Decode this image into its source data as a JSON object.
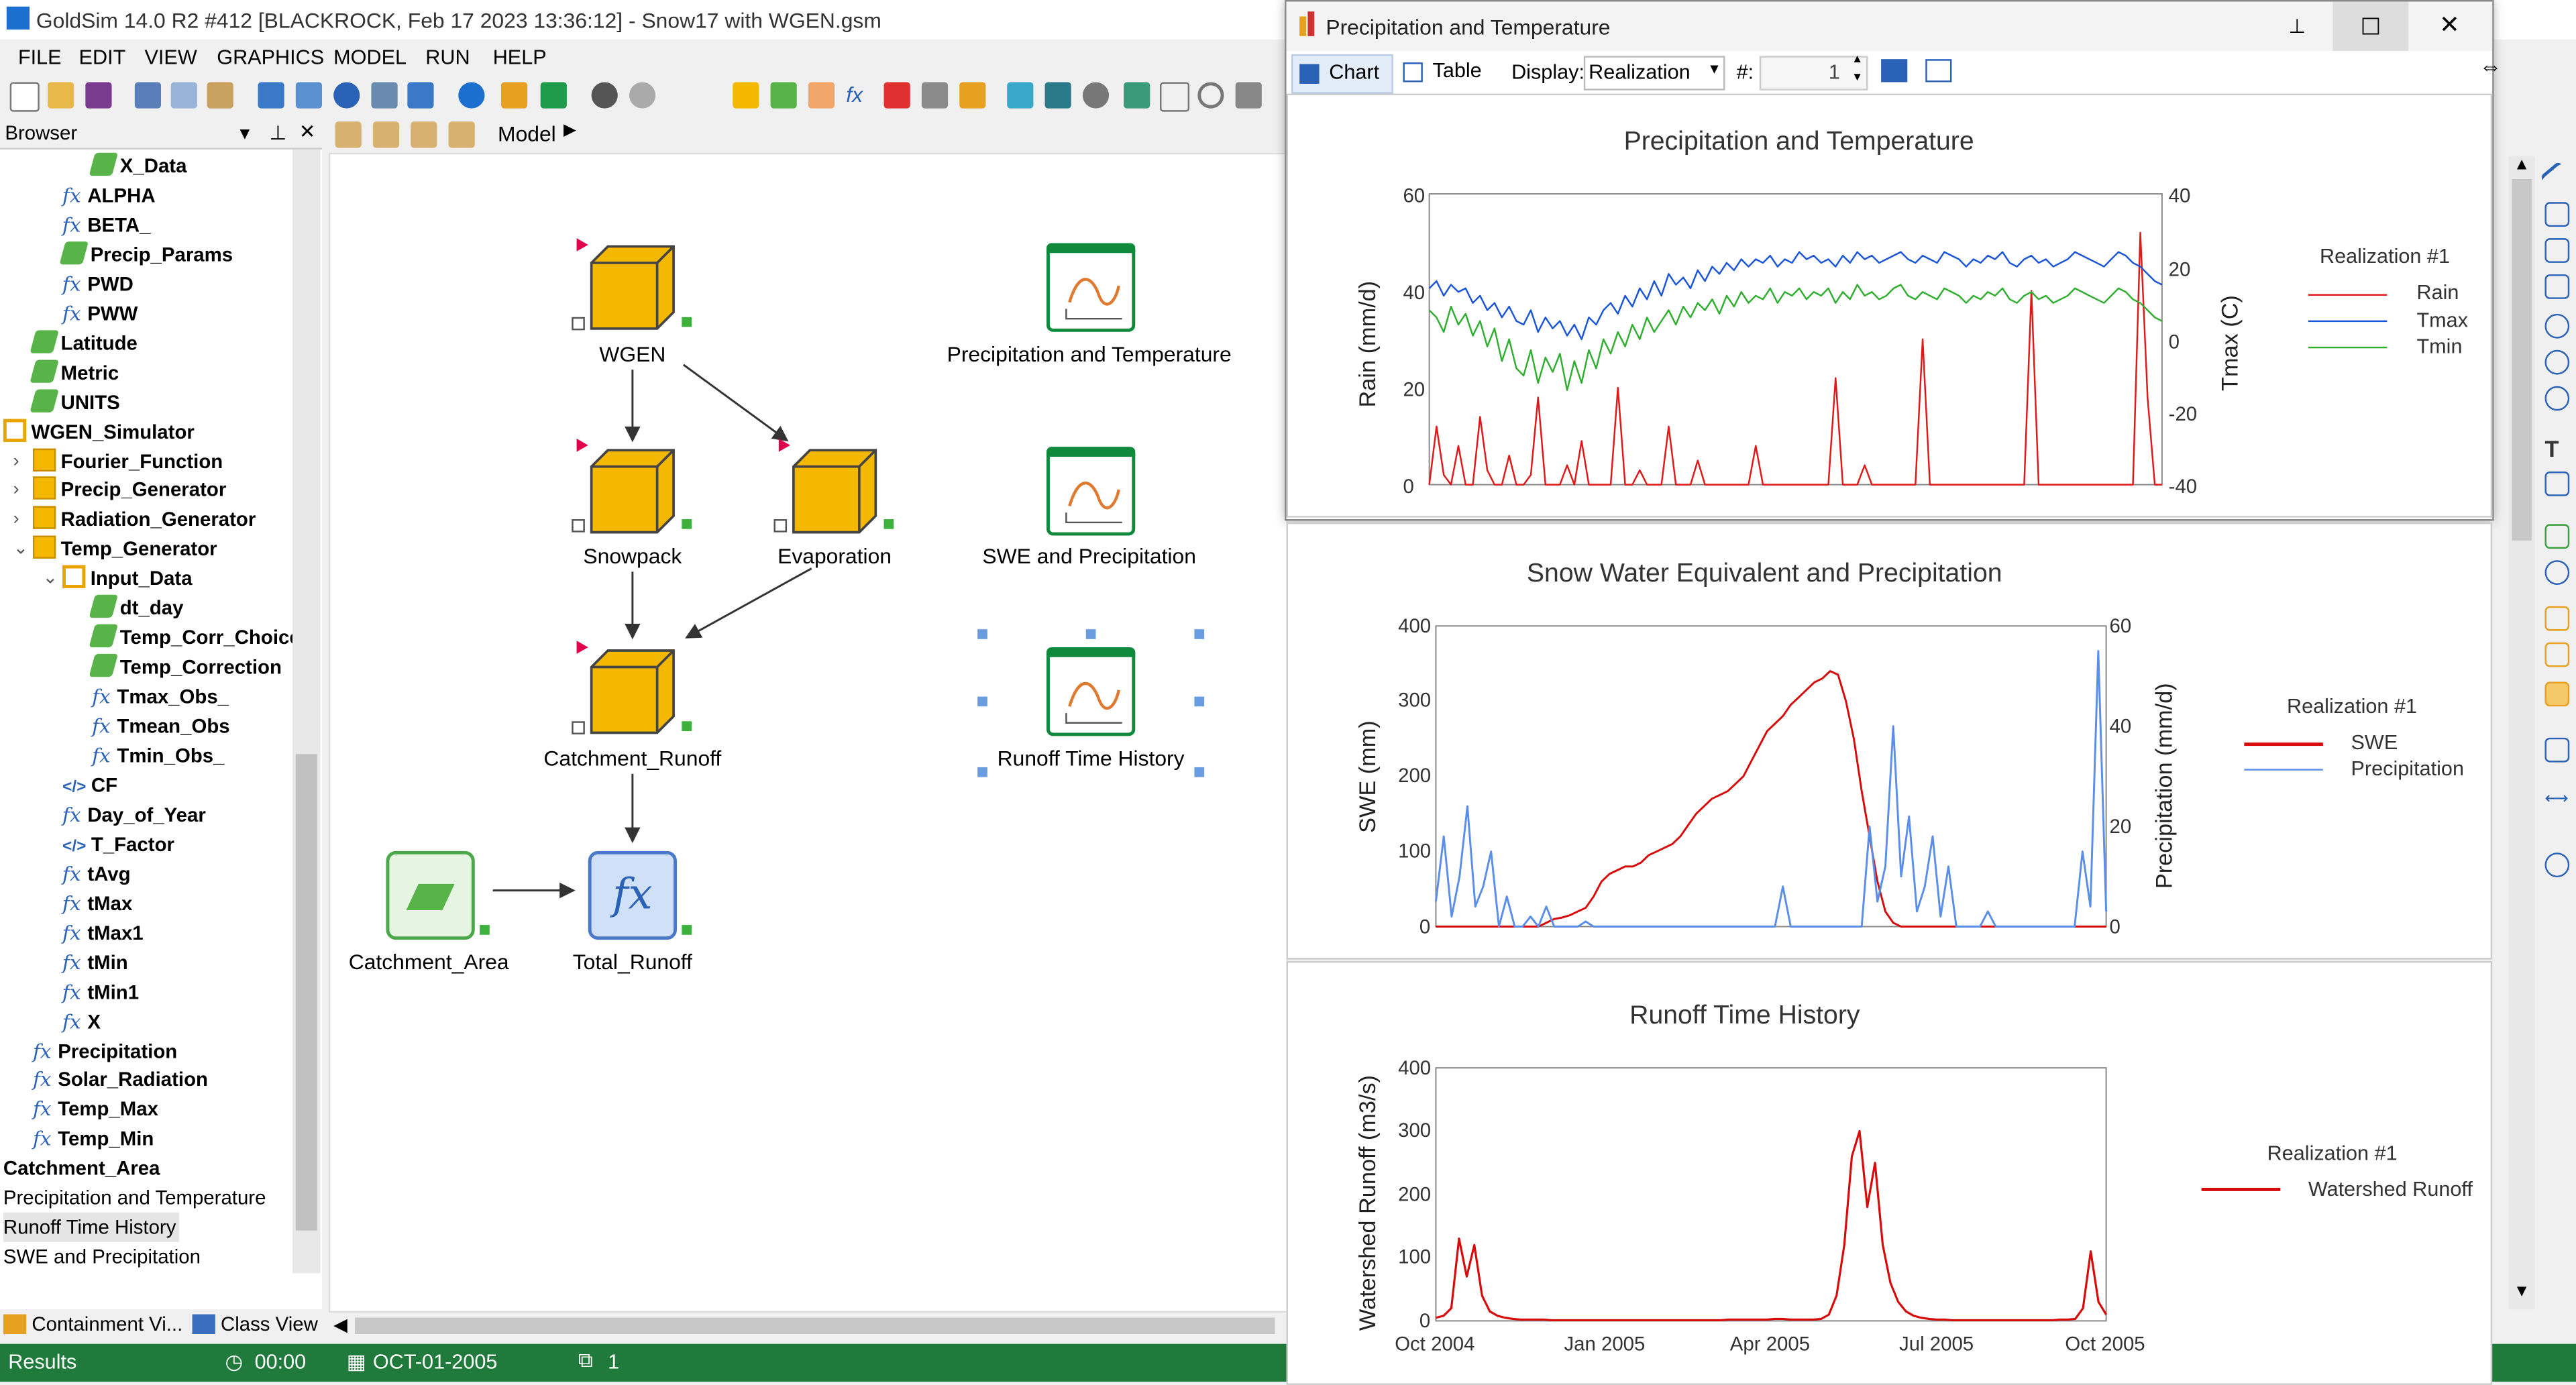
{
  "app": {
    "title": "GoldSim 14.0 R2 #412 [BLACKROCK, Feb 17 2023 13:36:12]  - Snow17 with WGEN.gsm",
    "menu": [
      "FILE",
      "EDIT",
      "VIEW",
      "GRAPHICS",
      "MODEL",
      "RUN",
      "HELP"
    ],
    "browser_label": "Browser",
    "breadcrumb": "Model",
    "bottom_tabs": [
      "Containment Vi...",
      "Class View"
    ]
  },
  "tree": [
    {
      "label": "X_Data",
      "icon": "pen",
      "indent": 3
    },
    {
      "label": "ALPHA",
      "icon": "fx",
      "indent": 2
    },
    {
      "label": "BETA_",
      "icon": "fx",
      "indent": 2
    },
    {
      "label": "Precip_Params",
      "icon": "pen",
      "indent": 2
    },
    {
      "label": "PWD",
      "icon": "fx",
      "indent": 2
    },
    {
      "label": "PWW",
      "icon": "fx",
      "indent": 2
    },
    {
      "label": "Latitude",
      "icon": "pen",
      "indent": 1
    },
    {
      "label": "Metric",
      "icon": "pen",
      "indent": 1
    },
    {
      "label": "UNITS",
      "icon": "pen",
      "indent": 1
    },
    {
      "label": "WGEN_Simulator",
      "icon": "box",
      "indent": 0
    },
    {
      "label": "Fourier_Function",
      "icon": "boxf",
      "indent": 1,
      "exp": ">"
    },
    {
      "label": "Precip_Generator",
      "icon": "boxf",
      "indent": 1,
      "exp": ">"
    },
    {
      "label": "Radiation_Generator",
      "icon": "boxf",
      "indent": 1,
      "exp": ">"
    },
    {
      "label": "Temp_Generator",
      "icon": "boxf",
      "indent": 1,
      "exp": "v"
    },
    {
      "label": "Input_Data",
      "icon": "box",
      "indent": 2,
      "exp": "v"
    },
    {
      "label": "dt_day",
      "icon": "pen",
      "indent": 3
    },
    {
      "label": "Temp_Corr_Choice",
      "icon": "pen",
      "indent": 3
    },
    {
      "label": "Temp_Correction",
      "icon": "pen",
      "indent": 3
    },
    {
      "label": "Tmax_Obs_",
      "icon": "fx",
      "indent": 3
    },
    {
      "label": "Tmean_Obs",
      "icon": "fx",
      "indent": 3
    },
    {
      "label": "Tmin_Obs_",
      "icon": "fx",
      "indent": 3
    },
    {
      "label": "CF",
      "icon": "code",
      "indent": 2
    },
    {
      "label": "Day_of_Year",
      "icon": "fx",
      "indent": 2
    },
    {
      "label": "T_Factor",
      "icon": "code",
      "indent": 2
    },
    {
      "label": "tAvg",
      "icon": "fx",
      "indent": 2
    },
    {
      "label": "tMax",
      "icon": "fx",
      "indent": 2
    },
    {
      "label": "tMax1",
      "icon": "fx",
      "indent": 2
    },
    {
      "label": "tMin",
      "icon": "fx",
      "indent": 2
    },
    {
      "label": "tMin1",
      "icon": "fx",
      "indent": 2
    },
    {
      "label": "X",
      "icon": "fx",
      "indent": 2
    },
    {
      "label": "Precipitation",
      "icon": "fx",
      "indent": 1
    },
    {
      "label": "Solar_Radiation",
      "icon": "fx",
      "indent": 1
    },
    {
      "label": "Temp_Max",
      "icon": "fx",
      "indent": 1
    },
    {
      "label": "Temp_Min",
      "icon": "fx",
      "indent": 1
    },
    {
      "label": "Catchment_Area",
      "icon": "none",
      "indent": 0
    },
    {
      "label": "Precipitation and Temperature",
      "icon": "none",
      "indent": 0,
      "plain": true
    },
    {
      "label": "Runoff Time History",
      "icon": "none",
      "indent": 0,
      "plain": true,
      "selected": true
    },
    {
      "label": "SWE and Precipitation",
      "icon": "none",
      "indent": 0,
      "plain": true
    }
  ],
  "nodes": {
    "wgen": "WGEN",
    "snowpack": "Snowpack",
    "evaporation": "Evaporation",
    "catchment_runoff": "Catchment_Runoff",
    "catchment_area": "Catchment_Area",
    "total_runoff": "Total_Runoff",
    "chart1": "Precipitation and Temperature",
    "chart2": "SWE and Precipitation",
    "chart3": "Runoff Time History"
  },
  "status": {
    "mode": "Results",
    "time": "00:00",
    "date": "OCT-01-2005",
    "realization": "1"
  },
  "window": {
    "title": "Precipitation and Temperature",
    "tab_chart": "Chart",
    "tab_table": "Table",
    "display_label": "Display:",
    "display_value": "Realization",
    "num_label": "#:",
    "num_value": "1"
  },
  "chart_data": [
    {
      "type": "line",
      "title": "Precipitation and Temperature",
      "ylabel": "Rain (mm/d)",
      "y2label": "Tmax (C)",
      "ylim": [
        0,
        60
      ],
      "y2lim": [
        -40,
        40
      ],
      "yticks": [
        "0",
        "20",
        "40",
        "60"
      ],
      "y2ticks": [
        "-40",
        "-20",
        "0",
        "20",
        "40"
      ],
      "legend_title": "Realization #1",
      "series": [
        {
          "name": "Rain",
          "color": "#e01818",
          "axis": "left",
          "values": [
            0,
            12,
            2,
            0,
            8,
            0,
            0,
            14,
            3,
            0,
            0,
            6,
            0,
            0,
            2,
            18,
            0,
            0,
            0,
            4,
            0,
            9,
            0,
            0,
            0,
            0,
            20,
            0,
            0,
            3,
            0,
            0,
            0,
            12,
            0,
            0,
            0,
            5,
            0,
            0,
            0,
            0,
            0,
            0,
            0,
            8,
            0,
            0,
            0,
            0,
            0,
            0,
            0,
            0,
            0,
            0,
            22,
            0,
            0,
            0,
            4,
            0,
            0,
            0,
            0,
            0,
            0,
            0,
            30,
            0,
            0,
            0,
            0,
            0,
            0,
            0,
            0,
            0,
            0,
            0,
            0,
            0,
            0,
            40,
            0,
            0,
            0,
            0,
            0,
            0,
            0,
            0,
            0,
            0,
            0,
            0,
            0,
            0,
            52,
            18,
            0,
            0
          ]
        },
        {
          "name": "Tmax",
          "color": "#1a55d8",
          "axis": "right",
          "values": [
            14,
            16,
            12,
            15,
            13,
            14,
            10,
            12,
            8,
            10,
            6,
            9,
            5,
            4,
            8,
            2,
            6,
            3,
            5,
            1,
            4,
            0,
            6,
            4,
            8,
            10,
            7,
            12,
            9,
            14,
            11,
            16,
            12,
            18,
            15,
            17,
            14,
            19,
            16,
            20,
            18,
            21,
            19,
            22,
            20,
            22,
            21,
            23,
            20,
            22,
            21,
            24,
            22,
            23,
            21,
            22,
            20,
            23,
            21,
            24,
            22,
            23,
            21,
            22,
            23,
            24,
            22,
            21,
            23,
            22,
            21,
            24,
            23,
            22,
            20,
            22,
            21,
            23,
            22,
            24,
            21,
            20,
            22,
            23,
            21,
            22,
            20,
            21,
            22,
            24,
            23,
            22,
            21,
            20,
            22,
            24,
            23,
            21,
            20,
            18,
            16,
            15
          ]
        },
        {
          "name": "Tmin",
          "color": "#2fae2f",
          "axis": "right",
          "values": [
            8,
            6,
            2,
            9,
            4,
            7,
            1,
            5,
            -2,
            3,
            -6,
            0,
            -8,
            -10,
            -3,
            -12,
            -5,
            -9,
            -4,
            -14,
            -6,
            -12,
            -3,
            -8,
            0,
            -4,
            2,
            -2,
            4,
            0,
            6,
            2,
            5,
            8,
            4,
            9,
            6,
            10,
            8,
            11,
            7,
            12,
            9,
            13,
            10,
            12,
            11,
            14,
            10,
            13,
            12,
            14,
            11,
            13,
            12,
            14,
            10,
            13,
            11,
            15,
            12,
            13,
            11,
            12,
            14,
            15,
            12,
            11,
            13,
            12,
            11,
            14,
            13,
            12,
            10,
            12,
            11,
            13,
            12,
            14,
            11,
            10,
            12,
            13,
            11,
            12,
            10,
            11,
            12,
            14,
            13,
            12,
            11,
            10,
            12,
            14,
            13,
            11,
            10,
            8,
            6,
            5
          ]
        }
      ]
    },
    {
      "type": "line",
      "title": "Snow Water Equivalent and Precipitation",
      "ylabel": "SWE (mm)",
      "y2label": "Precipitation (mm/d)",
      "ylim": [
        0,
        400
      ],
      "y2lim": [
        0,
        60
      ],
      "yticks": [
        "0",
        "100",
        "200",
        "300",
        "400"
      ],
      "y2ticks": [
        "0",
        "20",
        "40",
        "60"
      ],
      "legend_title": "Realization #1",
      "series": [
        {
          "name": "SWE",
          "color": "#d80b0b",
          "axis": "left",
          "values": [
            0,
            0,
            0,
            0,
            0,
            0,
            0,
            0,
            0,
            0,
            0,
            0,
            0,
            0,
            5,
            10,
            12,
            15,
            20,
            25,
            40,
            60,
            70,
            75,
            80,
            80,
            85,
            95,
            100,
            105,
            110,
            120,
            135,
            150,
            160,
            170,
            175,
            180,
            190,
            200,
            220,
            240,
            260,
            270,
            280,
            295,
            305,
            315,
            325,
            330,
            340,
            335,
            300,
            250,
            180,
            120,
            60,
            20,
            5,
            0,
            0,
            0,
            0,
            0,
            0,
            0,
            0,
            0,
            0,
            0,
            0,
            0,
            0,
            0,
            0,
            0,
            0,
            0,
            0,
            0,
            0,
            0,
            0,
            0,
            0,
            0
          ]
        },
        {
          "name": "Precipitation",
          "color": "#5a8ee8",
          "axis": "right",
          "values": [
            5,
            18,
            2,
            10,
            24,
            4,
            8,
            15,
            0,
            6,
            0,
            0,
            2,
            0,
            4,
            0,
            0,
            0,
            0,
            1,
            0,
            0,
            0,
            0,
            0,
            0,
            0,
            0,
            0,
            0,
            0,
            0,
            0,
            0,
            0,
            0,
            0,
            0,
            0,
            0,
            0,
            0,
            0,
            0,
            8,
            0,
            0,
            0,
            0,
            0,
            0,
            0,
            0,
            0,
            0,
            20,
            5,
            12,
            40,
            10,
            22,
            3,
            8,
            18,
            2,
            12,
            0,
            0,
            0,
            0,
            3,
            0,
            0,
            0,
            0,
            0,
            0,
            0,
            0,
            0,
            0,
            0,
            15,
            4,
            55,
            3
          ]
        }
      ]
    },
    {
      "type": "line",
      "title": "Runoff Time History",
      "ylabel": "Watershed Runoff (m3/s)",
      "ylim": [
        0,
        400
      ],
      "yticks": [
        "0",
        "100",
        "200",
        "300",
        "400"
      ],
      "xticks": [
        "Oct 2004",
        "Jan 2005",
        "Apr 2005",
        "Jul 2005",
        "Oct 2005"
      ],
      "legend_title": "Realization #1",
      "series": [
        {
          "name": "Watershed Runoff",
          "color": "#d80b0b",
          "axis": "left",
          "values": [
            5,
            8,
            20,
            130,
            70,
            120,
            40,
            15,
            8,
            5,
            3,
            2,
            2,
            2,
            2,
            1,
            1,
            1,
            1,
            1,
            1,
            1,
            1,
            1,
            1,
            1,
            1,
            1,
            1,
            1,
            1,
            1,
            1,
            1,
            1,
            1,
            1,
            1,
            2,
            2,
            2,
            2,
            2,
            2,
            3,
            3,
            2,
            2,
            2,
            2,
            3,
            10,
            40,
            120,
            260,
            300,
            180,
            250,
            120,
            60,
            30,
            15,
            8,
            5,
            3,
            2,
            2,
            1,
            1,
            1,
            1,
            1,
            1,
            1,
            1,
            1,
            1,
            1,
            1,
            1,
            1,
            2,
            2,
            3,
            20,
            110,
            30,
            10
          ]
        }
      ]
    }
  ]
}
